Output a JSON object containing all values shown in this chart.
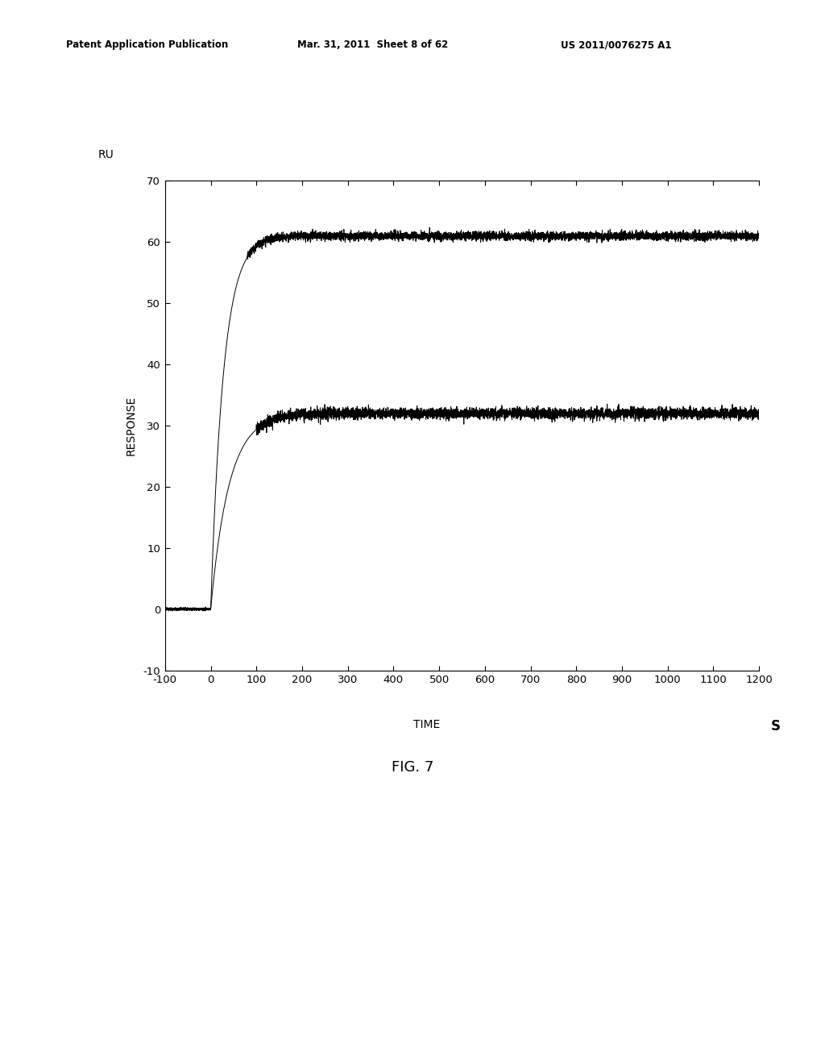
{
  "title": "FIG. 7",
  "ylabel_top": "RU",
  "ylabel_main": "RESPONSE",
  "xlabel": "TIME",
  "xlabel_unit": "S",
  "xlim": [
    -100,
    1200
  ],
  "ylim": [
    -10,
    70
  ],
  "xticks": [
    -100,
    0,
    100,
    200,
    300,
    400,
    500,
    600,
    700,
    800,
    900,
    1000,
    1100,
    1200
  ],
  "yticks": [
    -10,
    0,
    10,
    20,
    30,
    40,
    50,
    60,
    70
  ],
  "curve1_plateau": 61.0,
  "curve2_plateau": 32.0,
  "rise_start": 0,
  "tau1": 28,
  "tau2": 40,
  "noise_amplitude1": 0.35,
  "noise_amplitude2": 0.45,
  "line_color": "#000000",
  "background_color": "#ffffff",
  "header_left": "Patent Application Publication",
  "header_mid": "Mar. 31, 2011  Sheet 8 of 62",
  "header_right": "US 2011/0076275 A1"
}
